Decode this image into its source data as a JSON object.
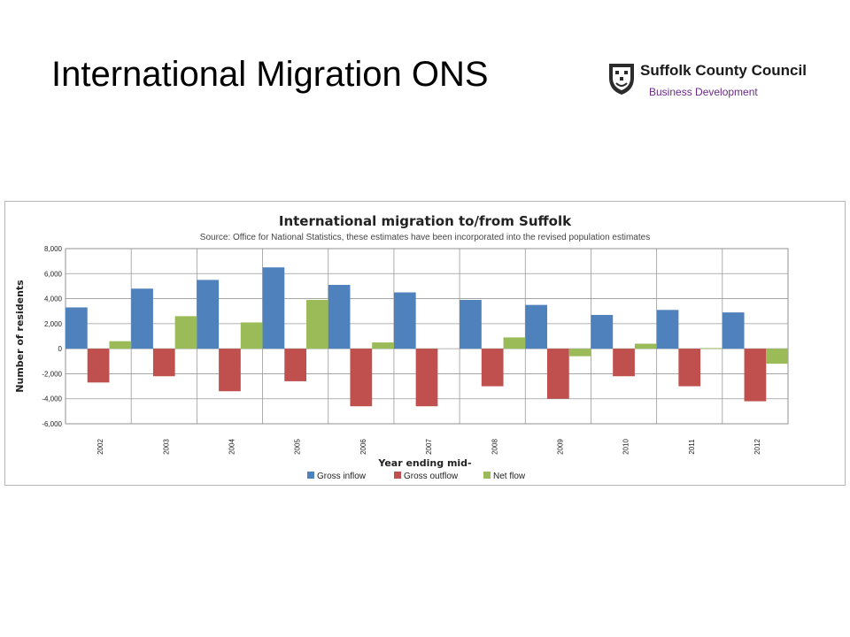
{
  "slide": {
    "title": "International Migration ONS"
  },
  "logo": {
    "org": "Suffolk County Council",
    "dept": "Business Development",
    "crest_icon": "suffolk-crest-icon",
    "dept_color": "#6a2a8a"
  },
  "chart_data": {
    "type": "bar",
    "title": "International migration to/from Suffolk",
    "subtitle": "Source: Office for National Statistics, these estimates have been incorporated into the revised population estimates",
    "xlabel": "Year ending mid-",
    "ylabel": "Number of residents",
    "categories": [
      "2002",
      "2003",
      "2004",
      "2005",
      "2006",
      "2007",
      "2008",
      "2009",
      "2010",
      "2011",
      "2012"
    ],
    "series": [
      {
        "name": "Gross inflow",
        "color": "#4f81bd",
        "values": [
          3300,
          4800,
          5500,
          6500,
          5100,
          4500,
          3900,
          3500,
          2700,
          3100,
          2900
        ]
      },
      {
        "name": "Gross outflow",
        "color": "#c0504d",
        "values": [
          -2700,
          -2200,
          -3400,
          -2600,
          -4600,
          -4600,
          -3000,
          -4000,
          -2200,
          -3000,
          -4200
        ]
      },
      {
        "name": "Net flow",
        "color": "#9bbb59",
        "values": [
          600,
          2600,
          2100,
          3900,
          500,
          0,
          900,
          -600,
          400,
          50,
          -1200
        ]
      }
    ],
    "ylim": [
      -6000,
      8000
    ],
    "yticks": [
      8000,
      6000,
      4000,
      2000,
      0,
      -2000,
      -4000,
      -6000
    ],
    "ytick_labels": [
      "8,000",
      "6,000",
      "4,000",
      "2,000",
      "0",
      "-2,000",
      "-4,000",
      "-6,000"
    ],
    "grid": true,
    "legend_position": "bottom"
  }
}
